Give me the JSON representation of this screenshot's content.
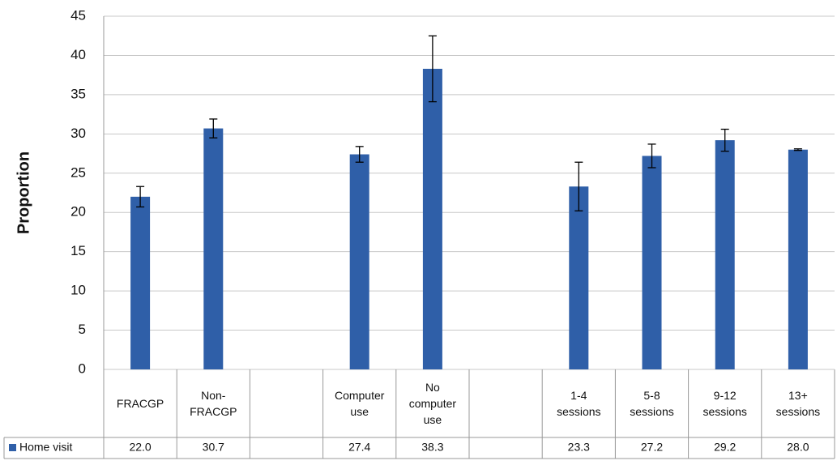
{
  "chart_data": {
    "type": "bar",
    "y_label": "Proportion",
    "categories": [
      "FRACGP",
      "Non-FRACGP",
      null,
      "Computer use",
      "No computer use",
      null,
      "1-4 sessions",
      "5-8 sessions",
      "9-12 sessions",
      "13+ sessions"
    ],
    "series": [
      {
        "name": "Home visit",
        "color": "#2f5fa8",
        "values": [
          22.0,
          30.7,
          null,
          27.4,
          38.3,
          null,
          23.3,
          27.2,
          29.2,
          28.0
        ],
        "value_labels": [
          "22.0",
          "30.7",
          null,
          "27.4",
          "38.3",
          null,
          "23.3",
          "27.2",
          "29.2",
          "28.0"
        ],
        "errors": [
          1.3,
          1.2,
          null,
          1.0,
          4.2,
          null,
          3.1,
          1.5,
          1.4,
          0.1
        ]
      }
    ],
    "ylim": [
      0,
      45
    ],
    "yticks": [
      0,
      5,
      10,
      15,
      20,
      25,
      30,
      35,
      40,
      45
    ],
    "grid": true
  }
}
